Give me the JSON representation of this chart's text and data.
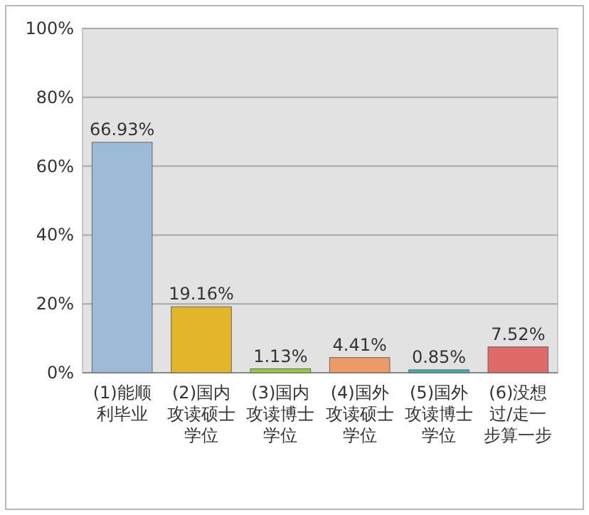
{
  "chart_data": {
    "type": "bar",
    "categories": [
      "(1)能顺利毕业",
      "(2)国内攻读硕士学位",
      "(3)国内攻读博士学位",
      "(4)国外攻读硕士学位",
      "(5)国外攻读博士学位",
      "(6)没想过/走一步算一步"
    ],
    "values": [
      66.93,
      19.16,
      1.13,
      4.41,
      0.85,
      7.52
    ],
    "colors": [
      "#9dbad6",
      "#e3b52a",
      "#9cc83c",
      "#ec9a66",
      "#3bb2b0",
      "#de6a6a"
    ],
    "value_labels": [
      "66.93%",
      "19.16%",
      "1.13%",
      "4.41%",
      "0.85%",
      "7.52%"
    ],
    "ylim": [
      0,
      100
    ],
    "yticks": [
      {
        "value": 0,
        "label": "0%"
      },
      {
        "value": 20,
        "label": "20%"
      },
      {
        "value": 40,
        "label": "40%"
      },
      {
        "value": 60,
        "label": "60%"
      },
      {
        "value": 80,
        "label": "80%"
      },
      {
        "value": 100,
        "label": "100%"
      }
    ],
    "grid": "y"
  }
}
